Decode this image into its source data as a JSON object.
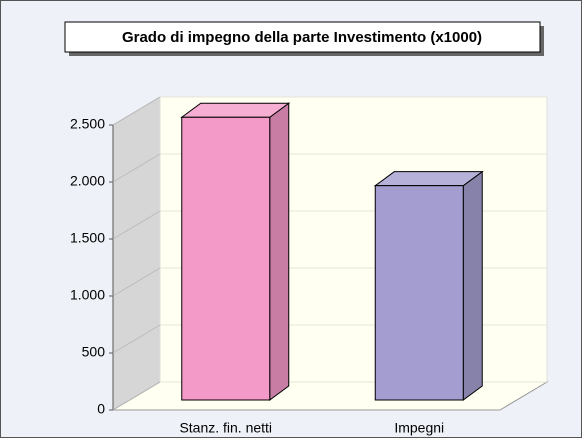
{
  "chart_data": {
    "type": "bar3d",
    "title": "Grado di impegno della parte Investimento (x1000)",
    "categories": [
      "Stanz. fin. netti",
      "Impegni"
    ],
    "values": [
      2480,
      1880
    ],
    "colors": [
      "#f49ac8",
      "#a39ecf"
    ],
    "ylim": [
      0,
      2500
    ],
    "yticks": [
      0,
      500,
      {
        "value": 1000,
        "label": "1.000"
      },
      {
        "value": 1500,
        "label": "1.500"
      },
      {
        "value": 2000,
        "label": "2.000"
      },
      {
        "value": 2500,
        "label": "2.500"
      }
    ],
    "grid": true
  }
}
